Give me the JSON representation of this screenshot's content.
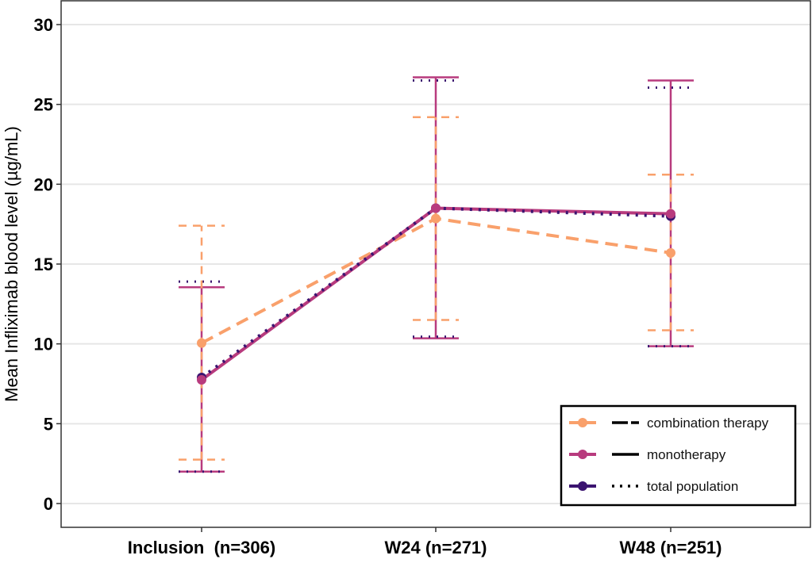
{
  "chart_data": {
    "type": "line",
    "title": "",
    "xlabel": "",
    "ylabel": "Mean Infliximab blood level (µg/mL)",
    "ylim": [
      -1.5,
      31
    ],
    "yticks": [
      0,
      5,
      10,
      15,
      20,
      25,
      30
    ],
    "ytick_labels": [
      "0",
      "5",
      "10",
      "15",
      "20",
      "25",
      "30"
    ],
    "grid": true,
    "categories": [
      "Inclusion  (n=306)",
      "W24 (n=271)",
      "W48 (n=251)"
    ],
    "legend_position": "bottom-right",
    "series": [
      {
        "name": "combination therapy",
        "color": "#F9A06B",
        "linestyle": "dashed",
        "values": [
          10.05,
          17.85,
          15.7
        ],
        "ci_lower": [
          2.75,
          11.5,
          10.85
        ],
        "ci_upper": [
          17.4,
          24.2,
          20.6
        ]
      },
      {
        "name": "monotherapy",
        "color": "#B83B7E",
        "linestyle": "solid",
        "values": [
          7.75,
          18.5,
          18.15
        ],
        "ci_lower": [
          2.0,
          10.35,
          9.85
        ],
        "ci_upper": [
          13.55,
          26.7,
          26.5
        ]
      },
      {
        "name": "total population",
        "color": "#3B1470",
        "linestyle": "dotted",
        "values": [
          7.9,
          18.5,
          18.0
        ],
        "ci_lower": [
          2.0,
          10.45,
          9.85
        ],
        "ci_upper": [
          13.9,
          26.5,
          26.05
        ]
      }
    ]
  }
}
